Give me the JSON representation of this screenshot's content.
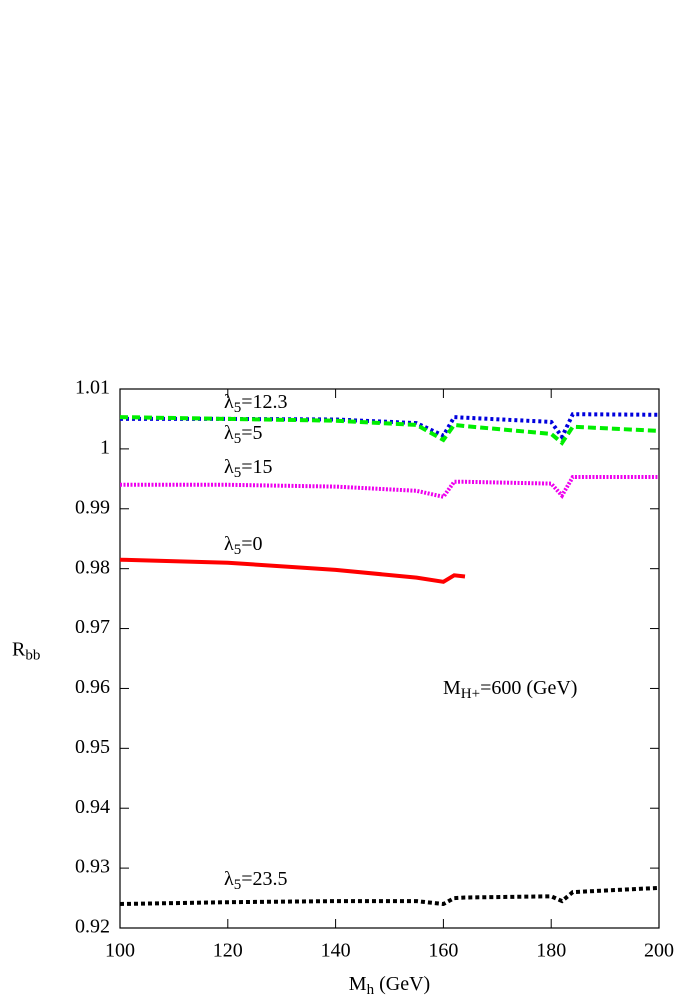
{
  "chart_data": {
    "type": "line",
    "xlabel": {
      "main": "M",
      "sub": "h",
      "rest": " (GeV)"
    },
    "ylabel": {
      "main": "R",
      "sub": "bb"
    },
    "annotation": {
      "main": "M",
      "sub": "H+",
      "rest": "=600 (GeV)"
    },
    "x": [
      100,
      120,
      140,
      155,
      160,
      162,
      164,
      180,
      182,
      184,
      200
    ],
    "xlim": [
      100,
      200
    ],
    "xticks": [
      100,
      120,
      140,
      160,
      180,
      200
    ],
    "ylim": [
      0.92,
      1.01
    ],
    "yticks": [
      0.92,
      0.93,
      0.94,
      0.95,
      0.96,
      0.97,
      0.98,
      0.99,
      1,
      1.01
    ],
    "series": [
      {
        "name": "λ5=12.3",
        "color": "#0000dd",
        "values": [
          1.005,
          1.005,
          1.0049,
          1.0043,
          1.0022,
          1.0053,
          1.0052,
          1.0045,
          1.002,
          1.0058,
          1.0057
        ]
      },
      {
        "name": "λ5=5",
        "color": "#00ee00",
        "values": [
          1.0053,
          1.005,
          1.0047,
          1.004,
          1.0015,
          1.004,
          1.0038,
          1.0025,
          1.001,
          1.0037,
          1.003
        ]
      },
      {
        "name": "λ5=15",
        "color": "#ee00ee",
        "values": [
          0.994,
          0.994,
          0.9937,
          0.993,
          0.992,
          0.9945,
          0.9945,
          0.9942,
          0.9922,
          0.9953,
          0.9953
        ]
      },
      {
        "name": "λ5=0",
        "color": "#ff0000",
        "values": [
          0.9815,
          0.981,
          0.9798,
          0.9785,
          0.9778,
          0.9789,
          0.9787,
          null,
          null,
          null,
          null
        ]
      },
      {
        "name": "λ5=23.5",
        "color": "#000000",
        "values": [
          0.924,
          0.9243,
          0.9245,
          0.9245,
          0.924,
          0.925,
          0.9251,
          0.9253,
          0.9245,
          0.926,
          0.9267
        ]
      }
    ]
  }
}
